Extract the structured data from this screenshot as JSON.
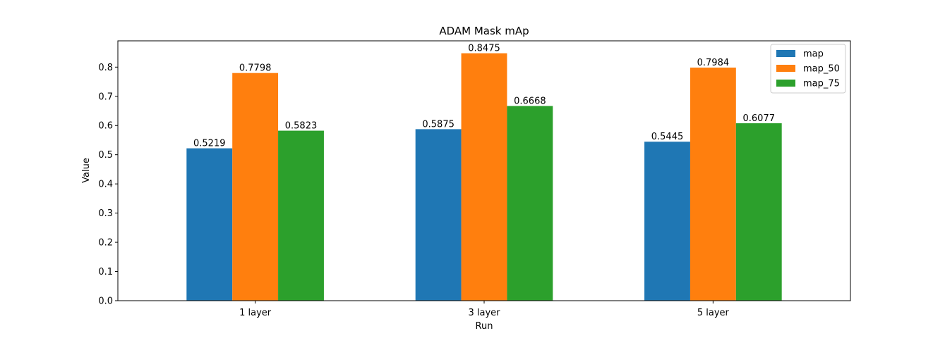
{
  "chart_data": {
    "type": "bar",
    "title": "ADAM Mask mAp",
    "xlabel": "Run",
    "ylabel": "Value",
    "categories": [
      "1 layer",
      "3 layer",
      "5 layer"
    ],
    "series": [
      {
        "name": "map",
        "color": "#1f77b4",
        "values": [
          0.5219,
          0.5875,
          0.5445
        ],
        "labels": [
          "0.5219",
          "0.5875",
          "0.5445"
        ]
      },
      {
        "name": "map_50",
        "color": "#ff7f0e",
        "values": [
          0.7798,
          0.8475,
          0.7984
        ],
        "labels": [
          "0.7798",
          "0.8475",
          "0.7984"
        ]
      },
      {
        "name": "map_75",
        "color": "#2ca02c",
        "values": [
          0.5823,
          0.6668,
          0.6077
        ],
        "labels": [
          "0.5823",
          "0.6668",
          "0.6077"
        ]
      }
    ],
    "ylim": [
      0,
      0.89
    ],
    "yticks": [
      "0.0",
      "0.1",
      "0.2",
      "0.3",
      "0.4",
      "0.5",
      "0.6",
      "0.7",
      "0.8"
    ],
    "grid": false,
    "legend_position": "top-right"
  }
}
